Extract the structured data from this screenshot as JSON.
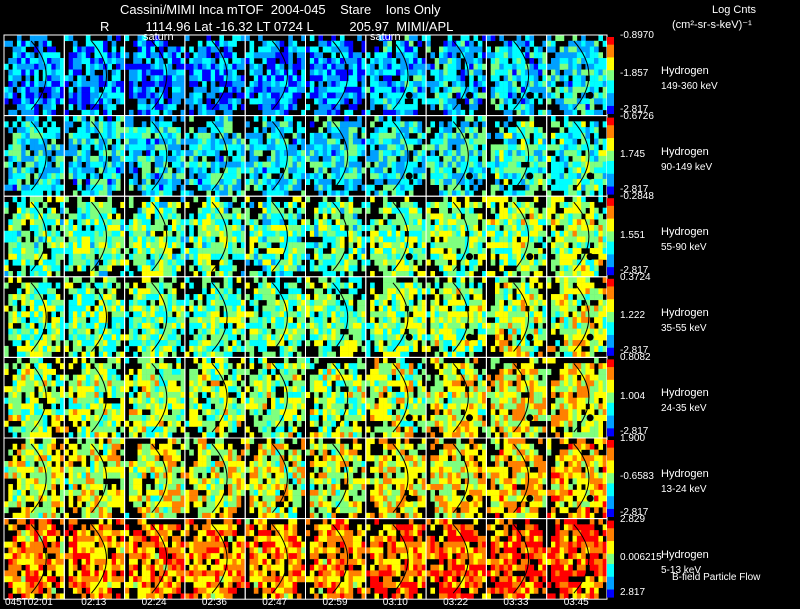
{
  "header": {
    "title": "Cassini/MIMI Inca mTOF  2004-045    Stare    Ions Only",
    "subtitle": "R          1114.96 Lat -16.32 LT 0724 L          205.97  MIMI/APL",
    "units_title": "Log Cnts",
    "units": "(cm²-sr-s-keV)⁻¹"
  },
  "overlay": {
    "saturn_label_1": "saturn",
    "saturn_label_2": "saturn",
    "footer_note": "B-field Particle Flow"
  },
  "chart_data": {
    "type": "heatmap",
    "title": "Cassini/MIMI Inca mTOF 2004-045 Stare Ions Only",
    "times": [
      "045T02:01",
      "02:13",
      "02:24",
      "02:36",
      "02:47",
      "02:59",
      "03:10",
      "03:22",
      "03:33",
      "03:45"
    ],
    "colorscale": [
      "#0000ff",
      "#00a0ff",
      "#00ffff",
      "#7fff7f",
      "#ffff00",
      "#ff8000",
      "#ff0000"
    ],
    "rows": [
      {
        "species": "Hydrogen",
        "energy": "149-360 keV",
        "max": "-0.8970",
        "mid": "-1.857",
        "min": "-2.817",
        "bias": 0.18
      },
      {
        "species": "Hydrogen",
        "energy": "90-149 keV",
        "max": "-0.6726",
        "mid": "1.745",
        "min": "-2.817",
        "bias": 0.3
      },
      {
        "species": "Hydrogen",
        "energy": "55-90 keV",
        "max": "-0.2848",
        "mid": "1.551",
        "min": "-2.817",
        "bias": 0.45
      },
      {
        "species": "Hydrogen",
        "energy": "35-55 keV",
        "max": "0.3724",
        "mid": "1.222",
        "min": "-2.817",
        "bias": 0.48
      },
      {
        "species": "Hydrogen",
        "energy": "24-35 keV",
        "max": "0.8082",
        "mid": "1.004",
        "min": "-2.817",
        "bias": 0.55
      },
      {
        "species": "Hydrogen",
        "energy": "13-24 keV",
        "max": "1.900",
        "mid": "-0.6583",
        "min": "-2.817",
        "bias": 0.62
      },
      {
        "species": "Hydrogen",
        "energy": "5-13 keV",
        "max": "2.829",
        "mid": "0.006215",
        "min": "2.817",
        "bias": 0.8
      }
    ]
  }
}
